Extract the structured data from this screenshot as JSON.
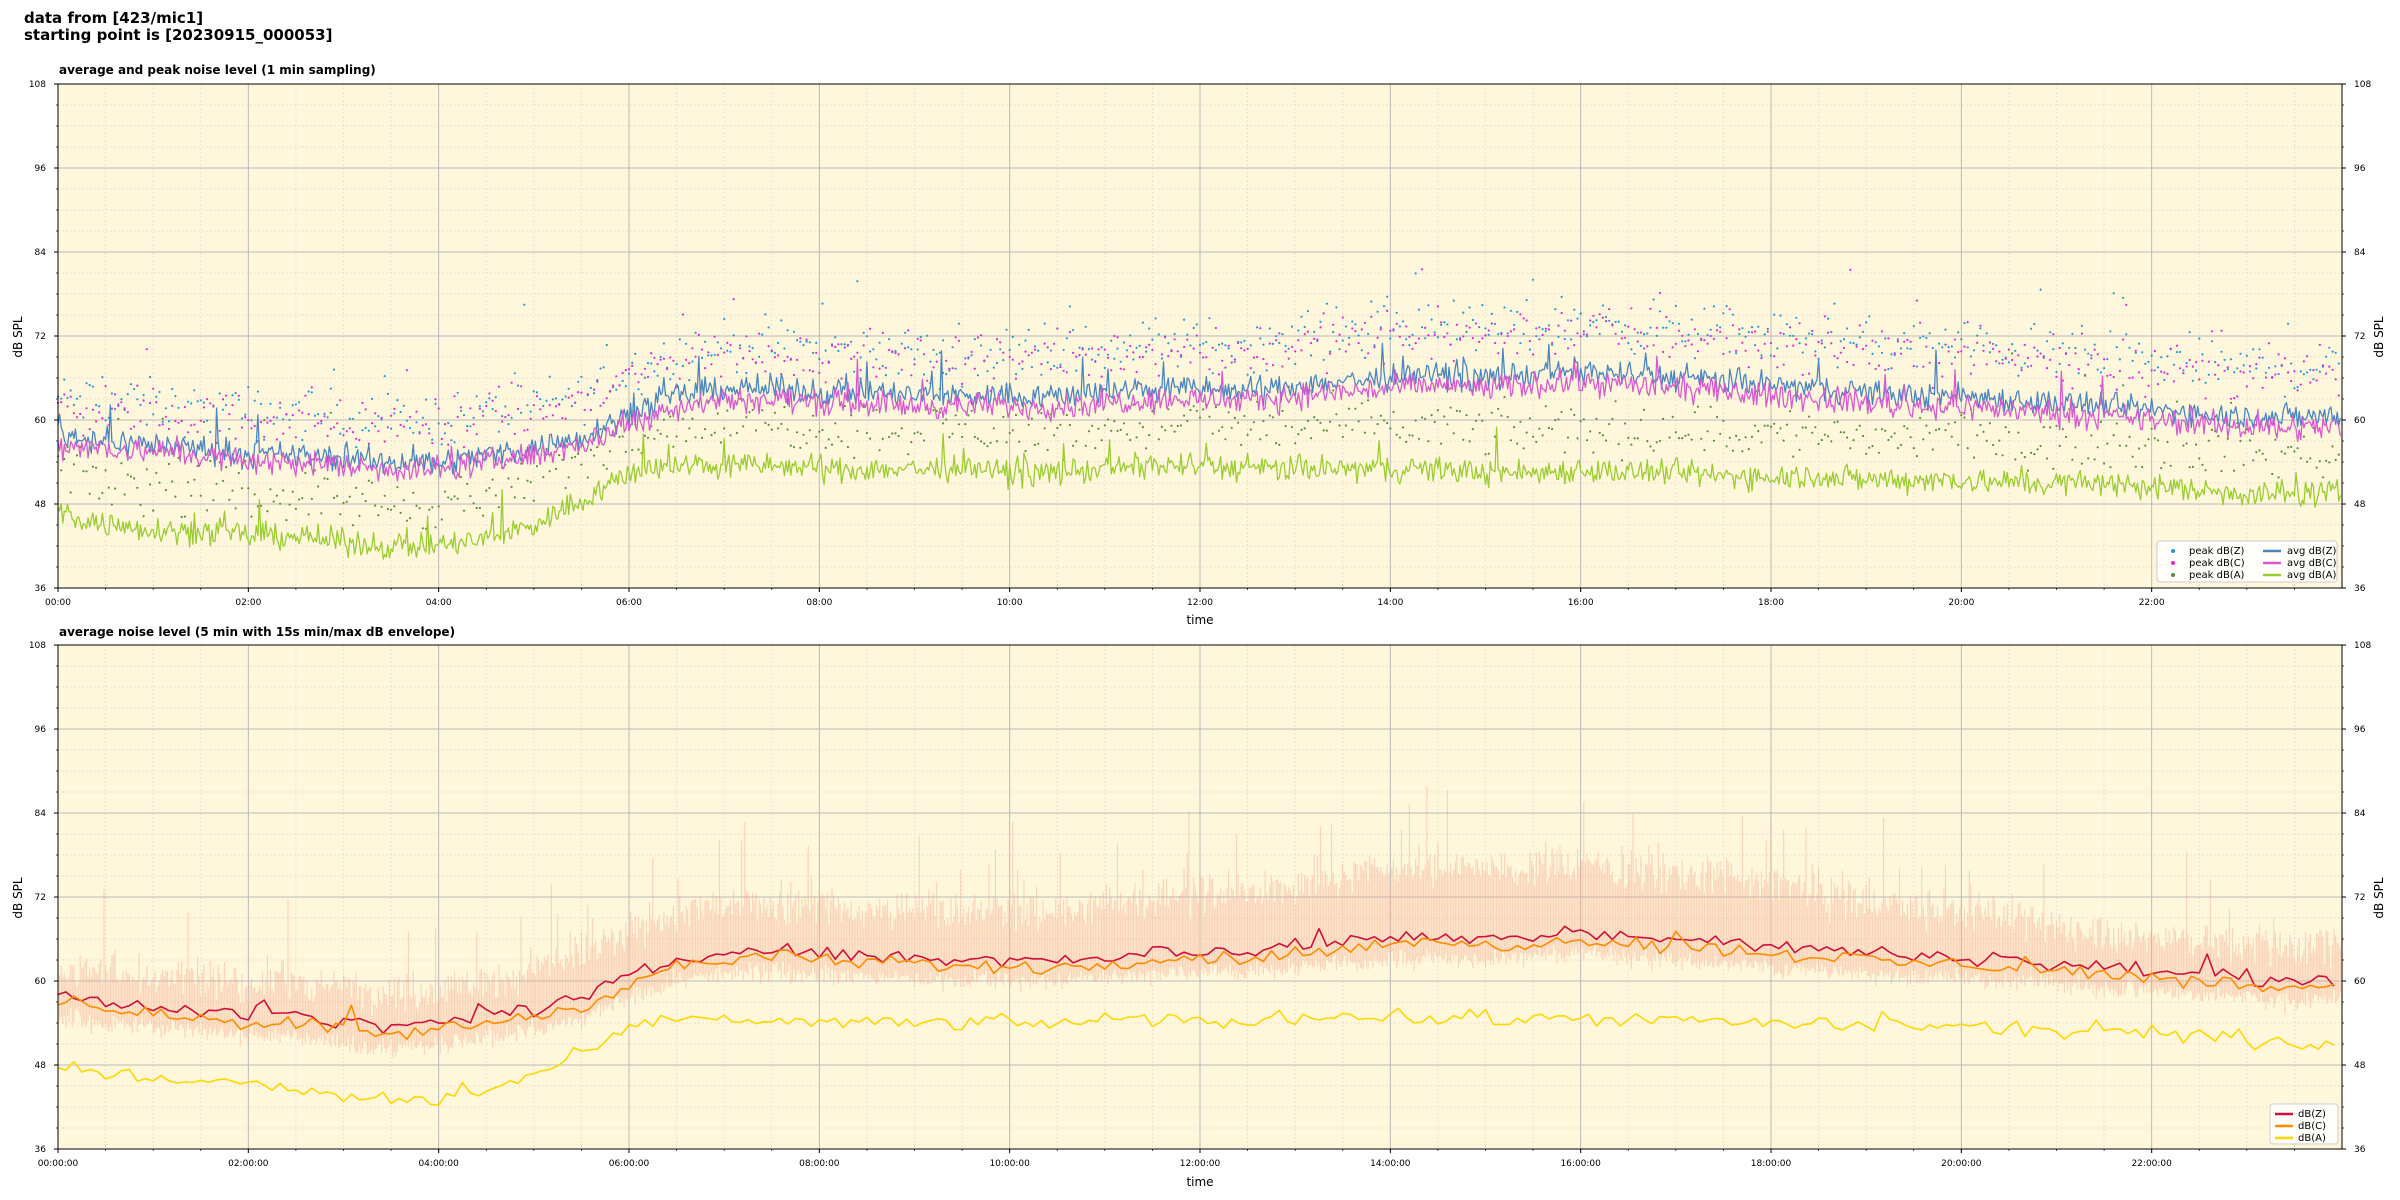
{
  "header": {
    "line1": "data from [423/mic1]",
    "line2": "starting point is [20230915_000053]"
  },
  "colors": {
    "background": "#fff7dc",
    "grid_major": "#b9b9b9",
    "grid_minor": "#e3dccc",
    "zA": "#4a86c0",
    "cA": "#d85ad0",
    "aA": "#9acd32",
    "zB": "#d0103a",
    "cB": "#ff8c00",
    "aB": "#ffd700",
    "envelope": "#f4a98f"
  },
  "chart_data": [
    {
      "type": "scatter+line",
      "title": "average and peak noise level (1 min sampling)",
      "xlabel": "time",
      "ylabel": "dB SPL",
      "xlim": [
        0,
        24
      ],
      "ylim": [
        36,
        108
      ],
      "yticks": [
        "36",
        "48",
        "60",
        "72",
        "84",
        "96",
        "108"
      ],
      "xticks": [
        "00:00",
        "02:00",
        "04:00",
        "06:00",
        "08:00",
        "10:00",
        "12:00",
        "14:00",
        "16:00",
        "18:00",
        "20:00",
        "22:00"
      ],
      "grid": true,
      "legend": "bottom-right",
      "legend_entries": [
        "peak dB(Z)",
        "peak dB(C)",
        "peak dB(A)",
        "avg dB(Z)",
        "avg dB(C)",
        "avg dB(A)"
      ],
      "hours": [
        0,
        0.5,
        1,
        1.5,
        2,
        2.5,
        3,
        3.5,
        4,
        4.5,
        5,
        5.5,
        6,
        6.5,
        7,
        7.5,
        8,
        8.5,
        9,
        9.5,
        10,
        10.5,
        11,
        11.5,
        12,
        12.5,
        13,
        13.5,
        14,
        14.5,
        15,
        15.5,
        16,
        16.5,
        17,
        17.5,
        18,
        18.5,
        19,
        19.5,
        20,
        20.5,
        21,
        21.5,
        22,
        22.5,
        23,
        23.5,
        24
      ],
      "series": [
        {
          "name": "avg dB(Z)",
          "kind": "line",
          "color": "#4a86c0",
          "values": [
            58,
            57,
            56.5,
            56,
            55,
            55,
            54.5,
            54,
            54,
            55,
            56,
            57.5,
            61,
            63.5,
            64.5,
            64.5,
            64,
            64,
            63.5,
            63.5,
            63.5,
            63.5,
            64,
            64.5,
            64.5,
            64,
            65,
            65.5,
            66,
            66.5,
            66,
            66.5,
            67,
            66.5,
            66,
            65.5,
            65,
            64.5,
            64,
            63.5,
            63.5,
            63,
            62.5,
            62,
            61.5,
            61,
            60.5,
            60.5,
            60.5
          ]
        },
        {
          "name": "avg dB(C)",
          "kind": "line",
          "color": "#d85ad0",
          "values": [
            56.5,
            56,
            55.5,
            55,
            54,
            54,
            53.5,
            53,
            53,
            54,
            55,
            56.5,
            59.5,
            62,
            63,
            63,
            62.5,
            62.5,
            62,
            62,
            62,
            62,
            62.5,
            63,
            63,
            62.5,
            63.5,
            64,
            64.5,
            65,
            64.5,
            65,
            65.5,
            65,
            64.5,
            64,
            63.5,
            63,
            62.5,
            62,
            62,
            61.5,
            61,
            60.5,
            60,
            59.5,
            59,
            59,
            59
          ]
        },
        {
          "name": "avg dB(A)",
          "kind": "line",
          "color": "#9acd32",
          "values": [
            47,
            45,
            44.5,
            44,
            43.5,
            43.5,
            42.5,
            42,
            42,
            43,
            45,
            48.5,
            52.5,
            53.5,
            53.5,
            53.5,
            53,
            53,
            53,
            53,
            52.5,
            52.5,
            53,
            53.5,
            53.5,
            53,
            53,
            53,
            53,
            53,
            52.5,
            52.5,
            53,
            52.5,
            52.5,
            52,
            52,
            52,
            51.5,
            51.5,
            51.5,
            51,
            51,
            51,
            50.5,
            50,
            49.5,
            49.5,
            49.5
          ]
        },
        {
          "name": "peak dB(Z)",
          "kind": "scatter",
          "color": "#1f9bd7",
          "values": [
            63,
            62.5,
            62,
            61.5,
            61,
            61,
            60.5,
            60,
            60,
            61,
            62,
            63.5,
            67,
            69.5,
            70.5,
            70.5,
            70,
            70,
            69.5,
            69.5,
            69.5,
            69.5,
            70,
            71,
            71,
            70.5,
            72,
            72.5,
            73,
            73.5,
            73,
            73.5,
            74,
            73.5,
            73,
            72.5,
            72,
            71.5,
            71,
            70.5,
            70.5,
            70,
            69.5,
            69,
            68.5,
            68,
            67.5,
            67.5,
            67.5
          ]
        },
        {
          "name": "peak dB(C)",
          "kind": "scatter",
          "color": "#e426d6",
          "values": [
            62,
            61.5,
            61,
            60.5,
            60,
            60,
            59.5,
            59,
            59,
            60,
            61,
            62.5,
            66,
            68.5,
            69.5,
            69.5,
            69,
            69,
            68.5,
            68.5,
            68.5,
            68.5,
            69,
            70,
            70,
            69.5,
            71,
            71.5,
            72,
            72.5,
            72,
            72.5,
            73,
            72.5,
            72,
            71.5,
            71,
            70.5,
            70,
            69.5,
            69.5,
            69,
            68.5,
            68,
            67.5,
            67,
            66.5,
            66.5,
            66.5
          ]
        },
        {
          "name": "peak dB(A)",
          "kind": "scatter",
          "color": "#5a8f3c",
          "values": [
            53,
            51,
            50.5,
            50,
            49.5,
            49.5,
            48.5,
            48,
            48,
            49,
            51,
            54.5,
            58.5,
            59.5,
            59.5,
            59.5,
            59,
            59,
            59,
            59,
            58.5,
            58.5,
            59,
            59.5,
            59.5,
            59,
            59,
            59,
            59,
            59,
            58.5,
            58.5,
            59,
            58.5,
            58.5,
            58,
            58,
            58,
            57.5,
            57.5,
            57.5,
            57,
            57,
            57,
            56.5,
            56,
            55.5,
            55.5,
            55.5
          ]
        }
      ]
    },
    {
      "type": "line+band",
      "title": "average noise level (5 min with 15s min/max dB envelope)",
      "xlabel": "time",
      "ylabel": "dB SPL",
      "xlim": [
        0,
        24
      ],
      "ylim": [
        36,
        108
      ],
      "yticks": [
        "36",
        "48",
        "60",
        "72",
        "84",
        "96",
        "108"
      ],
      "xticks": [
        "00:00:00",
        "02:00:00",
        "04:00:00",
        "06:00:00",
        "08:00:00",
        "10:00:00",
        "12:00:00",
        "14:00:00",
        "16:00:00",
        "18:00:00",
        "20:00:00",
        "22:00:00"
      ],
      "grid": true,
      "legend": "bottom-right",
      "legend_entries": [
        "dB(Z)",
        "dB(C)",
        "dB(A)"
      ],
      "hours": [
        0,
        0.5,
        1,
        1.5,
        2,
        2.5,
        3,
        3.5,
        4,
        4.5,
        5,
        5.5,
        6,
        6.5,
        7,
        7.5,
        8,
        8.5,
        9,
        9.5,
        10,
        10.5,
        11,
        11.5,
        12,
        12.5,
        13,
        13.5,
        14,
        14.5,
        15,
        15.5,
        16,
        16.5,
        17,
        17.5,
        18,
        18.5,
        19,
        19.5,
        20,
        20.5,
        21,
        21.5,
        22,
        22.5,
        23,
        23.5,
        24
      ],
      "series": [
        {
          "name": "dB(Z)",
          "kind": "line",
          "color": "#d0103a",
          "values": [
            58,
            57,
            56.5,
            56,
            55,
            55,
            54,
            53.5,
            54,
            55,
            56,
            57.5,
            60.5,
            63,
            64,
            64.5,
            64,
            63.5,
            63.5,
            63,
            63,
            63,
            63.5,
            64,
            64.5,
            64,
            65,
            65.5,
            66,
            66.5,
            66,
            66.5,
            67,
            66.5,
            66,
            65.5,
            65,
            64.5,
            64,
            63.5,
            63.5,
            63,
            62.5,
            62,
            61.5,
            61,
            60.5,
            60,
            60.5
          ]
        },
        {
          "name": "dB(C)",
          "kind": "line",
          "color": "#ff8c00",
          "values": [
            57,
            56,
            55.5,
            55,
            54,
            54,
            53,
            52.5,
            53,
            54,
            55,
            56.5,
            59.5,
            62,
            63,
            63.5,
            63,
            62.5,
            62.5,
            62,
            62,
            62,
            62.5,
            63,
            63.5,
            63,
            64,
            64.5,
            65,
            65.5,
            65,
            65.5,
            66,
            65.5,
            65,
            64.5,
            64,
            63.5,
            63,
            62.5,
            62.5,
            62,
            61.5,
            61,
            60.5,
            60,
            59.5,
            59,
            59.5
          ]
        },
        {
          "name": "dB(A)",
          "kind": "line",
          "color": "#ffd700",
          "values": [
            48,
            47,
            46,
            45.5,
            45,
            44.5,
            43.5,
            43,
            43,
            44.5,
            46.5,
            49.5,
            53,
            54.5,
            54.5,
            54.5,
            54,
            54,
            54,
            54,
            54,
            54,
            54.5,
            54.5,
            54.5,
            54,
            55,
            55,
            55,
            54.5,
            54.5,
            54.5,
            55,
            54.5,
            54.5,
            54,
            54,
            54,
            53.5,
            53.5,
            53.5,
            53,
            53,
            52.5,
            52.5,
            52,
            51.5,
            51,
            51
          ]
        },
        {
          "name": "envelope max",
          "kind": "band-upper",
          "color": "#f4a98f",
          "values": [
            62,
            61.5,
            61,
            60.5,
            60,
            60,
            59,
            58.5,
            59,
            60,
            61.5,
            63.5,
            67,
            70,
            71,
            71,
            70.5,
            70,
            70,
            70,
            70,
            70,
            71,
            72,
            73,
            72.5,
            74,
            75,
            76,
            76.5,
            76,
            76.5,
            77,
            76,
            75,
            74.5,
            73.5,
            72.5,
            71.5,
            70.5,
            70,
            69,
            68,
            67,
            66.5,
            66,
            65.5,
            65,
            65
          ]
        },
        {
          "name": "envelope min",
          "kind": "band-lower",
          "color": "#f4a98f",
          "values": [
            55,
            54,
            53.5,
            53,
            52,
            52,
            51,
            50.5,
            51,
            52,
            53,
            54.5,
            57.5,
            60,
            61,
            61.5,
            61,
            60.5,
            60.5,
            60,
            60,
            60,
            60.5,
            61,
            61.5,
            61,
            62,
            62.5,
            63,
            63.5,
            63,
            63.5,
            64,
            63.5,
            63,
            62.5,
            62,
            61.5,
            61,
            60.5,
            60.5,
            60,
            59.5,
            59,
            58.5,
            58,
            57.5,
            57,
            57.5
          ]
        }
      ]
    }
  ]
}
